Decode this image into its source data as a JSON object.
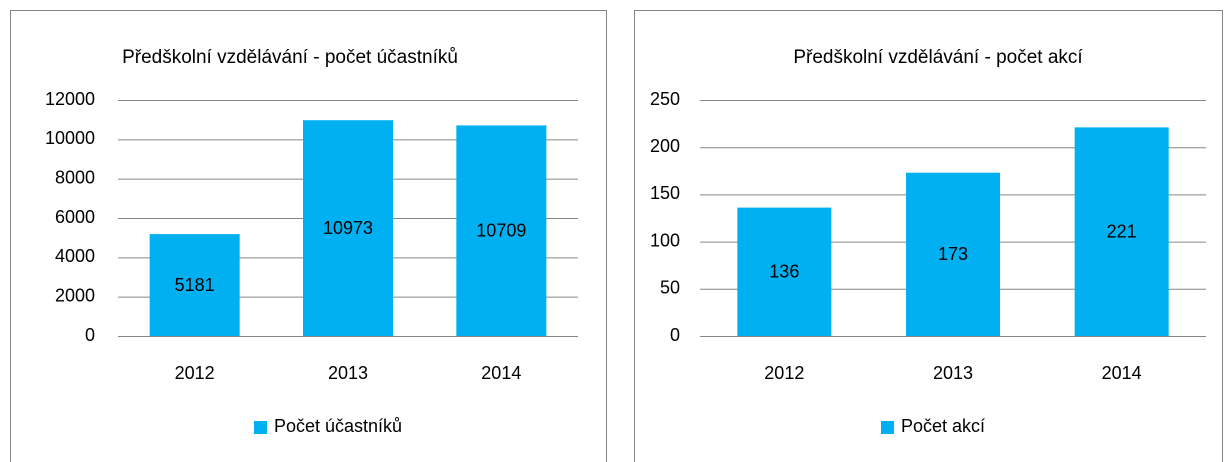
{
  "chart_data": [
    {
      "type": "bar",
      "title": "Předškolní vzdělávání - počet účastníků",
      "categories": [
        "2012",
        "2013",
        "2014"
      ],
      "series": [
        {
          "name": "Počet účastníků",
          "color": "#00b0f0",
          "values": [
            5181,
            10973,
            10709
          ]
        }
      ],
      "ylim": [
        0,
        12000
      ],
      "yticks": [
        0,
        2000,
        4000,
        6000,
        8000,
        10000,
        12000
      ],
      "grid": true,
      "legend": "bottom",
      "data_labels": true
    },
    {
      "type": "bar",
      "title": "Předškolní vzdělávání - počet akcí",
      "categories": [
        "2012",
        "2013",
        "2014"
      ],
      "series": [
        {
          "name": "Počet akcí",
          "color": "#00b0f0",
          "values": [
            136,
            173,
            221
          ]
        }
      ],
      "ylim": [
        0,
        250
      ],
      "yticks": [
        0,
        50,
        100,
        150,
        200,
        250
      ],
      "grid": true,
      "legend": "bottom",
      "data_labels": true
    }
  ]
}
